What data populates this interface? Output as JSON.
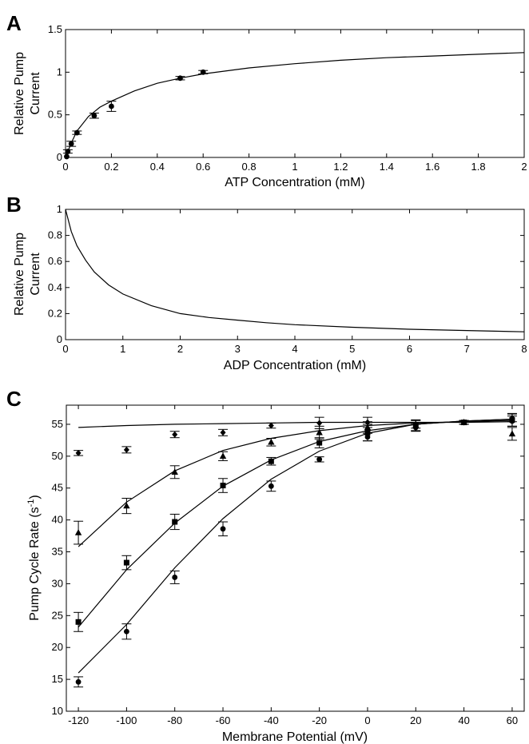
{
  "chart_data": [
    {
      "panel": "A",
      "type": "scatter",
      "xlabel": "ATP Concentration (mM)",
      "ylabel": [
        "Relative Pump",
        "Current"
      ],
      "xlim": [
        0,
        2
      ],
      "ylim": [
        0,
        1.5
      ],
      "xticks": [
        0,
        0.2,
        0.4,
        0.6,
        0.8,
        1,
        1.2,
        1.4,
        1.6,
        1.8,
        2
      ],
      "xtick_labels": [
        "0",
        "0.2",
        "0.4",
        "0.6",
        "0.8",
        "1",
        "1.2",
        "1.4",
        "1.6",
        "1.8",
        "2"
      ],
      "yticks": [
        0,
        0.5,
        1,
        1.5
      ],
      "ytick_labels": [
        "0",
        "0.5",
        "1",
        "1.5"
      ],
      "points": [
        {
          "x": 0.005,
          "y": 0.01,
          "err": 0
        },
        {
          "x": 0.01,
          "y": 0.07,
          "err": 0.02
        },
        {
          "x": 0.025,
          "y": 0.16,
          "err": 0.03
        },
        {
          "x": 0.05,
          "y": 0.29,
          "err": 0.02
        },
        {
          "x": 0.125,
          "y": 0.49,
          "err": 0.03
        },
        {
          "x": 0.2,
          "y": 0.6,
          "err": 0.06
        },
        {
          "x": 0.5,
          "y": 0.93,
          "err": 0.02
        },
        {
          "x": 0.6,
          "y": 1.0,
          "err": 0.02
        }
      ],
      "curve": {
        "x": [
          0,
          0.025,
          0.05,
          0.1,
          0.15,
          0.2,
          0.3,
          0.4,
          0.5,
          0.6,
          0.8,
          1.0,
          1.2,
          1.4,
          1.6,
          1.8,
          2.0
        ],
        "y": [
          0,
          0.17,
          0.31,
          0.48,
          0.59,
          0.66,
          0.78,
          0.87,
          0.93,
          0.98,
          1.05,
          1.1,
          1.14,
          1.17,
          1.19,
          1.21,
          1.23
        ]
      },
      "grid": false
    },
    {
      "panel": "B",
      "type": "line",
      "xlabel": "ADP Concentration (mM)",
      "ylabel": [
        "Relative Pump",
        "Current"
      ],
      "xlim": [
        0,
        8
      ],
      "ylim": [
        0,
        1
      ],
      "xticks": [
        0,
        1,
        2,
        3,
        4,
        5,
        6,
        7,
        8
      ],
      "xtick_labels": [
        "0",
        "1",
        "2",
        "3",
        "4",
        "5",
        "6",
        "7",
        "8"
      ],
      "yticks": [
        0,
        0.2,
        0.4,
        0.6,
        0.8,
        1
      ],
      "ytick_labels": [
        "0",
        "0.2",
        "0.4",
        "0.6",
        "0.8",
        "1"
      ],
      "curve": {
        "x": [
          0,
          0.1,
          0.2,
          0.35,
          0.5,
          0.75,
          1,
          1.5,
          2,
          2.5,
          3,
          3.5,
          4,
          5,
          6,
          7,
          8
        ],
        "y": [
          1.0,
          0.83,
          0.72,
          0.61,
          0.52,
          0.42,
          0.35,
          0.26,
          0.2,
          0.17,
          0.15,
          0.13,
          0.115,
          0.095,
          0.08,
          0.07,
          0.06
        ]
      },
      "grid": false
    },
    {
      "panel": "C",
      "type": "scatter",
      "xlabel": "Membrane Potential (mV)",
      "ylabel": "Pump Cycle Rate (s",
      "ylabel_sup": "-1",
      "ylabel_end": ")",
      "xlim": [
        -125,
        65
      ],
      "ylim": [
        10,
        58
      ],
      "xticks": [
        -120,
        -100,
        -80,
        -60,
        -40,
        -20,
        0,
        20,
        40,
        60
      ],
      "xtick_labels": [
        "-120",
        "-100",
        "-80",
        "-60",
        "-40",
        "-20",
        "0",
        "20",
        "40",
        "60"
      ],
      "yticks": [
        10,
        15,
        20,
        25,
        30,
        35,
        40,
        45,
        50,
        55
      ],
      "ytick_labels": [
        "10",
        "15",
        "20",
        "25",
        "30",
        "35",
        "40",
        "45",
        "50",
        "55"
      ],
      "series": [
        {
          "marker": "diamond",
          "points": [
            {
              "x": -120,
              "y": 50.5,
              "err": 0.4
            },
            {
              "x": -100,
              "y": 51.0,
              "err": 0.5
            },
            {
              "x": -80,
              "y": 53.4,
              "err": 0.5
            },
            {
              "x": -60,
              "y": 53.7,
              "err": 0.5
            },
            {
              "x": -40,
              "y": 54.8,
              "err": 0.4
            },
            {
              "x": -20,
              "y": 55.2,
              "err": 0.9
            },
            {
              "x": 0,
              "y": 55.3,
              "err": 0.8
            },
            {
              "x": 20,
              "y": 55.0,
              "err": 0.6
            },
            {
              "x": 40,
              "y": 55.3,
              "err": 0.3
            },
            {
              "x": 60,
              "y": 56.0,
              "err": 0.6
            }
          ],
          "curve": {
            "x": [
              -120,
              -100,
              -80,
              -60,
              -40,
              -20,
              0,
              20,
              40,
              60
            ],
            "y": [
              54.5,
              54.8,
              55.0,
              55.1,
              55.2,
              55.3,
              55.3,
              55.3,
              55.3,
              55.4
            ]
          }
        },
        {
          "marker": "triangle",
          "points": [
            {
              "x": -120,
              "y": 38.0,
              "err": 1.8
            },
            {
              "x": -100,
              "y": 42.2,
              "err": 1.2
            },
            {
              "x": -80,
              "y": 47.5,
              "err": 1.0
            },
            {
              "x": -60,
              "y": 50.0,
              "err": 0.7
            },
            {
              "x": -40,
              "y": 52.2,
              "err": 0.6
            },
            {
              "x": -20,
              "y": 53.7,
              "err": 1.0
            },
            {
              "x": 0,
              "y": 54.5,
              "err": 0.9
            },
            {
              "x": 20,
              "y": 54.8,
              "err": 0.8
            },
            {
              "x": 40,
              "y": 55.3,
              "err": 0.3
            },
            {
              "x": 60,
              "y": 53.5,
              "err": 1.0
            }
          ],
          "curve": {
            "x": [
              -120,
              -100,
              -80,
              -60,
              -40,
              -20,
              0,
              20,
              40,
              60
            ],
            "y": [
              35.8,
              42.8,
              47.7,
              50.9,
              52.8,
              54.0,
              54.8,
              55.2,
              55.4,
              55.6
            ]
          }
        },
        {
          "marker": "square",
          "points": [
            {
              "x": -120,
              "y": 24.0,
              "err": 1.5
            },
            {
              "x": -100,
              "y": 33.3,
              "err": 1.1
            },
            {
              "x": -80,
              "y": 39.7,
              "err": 1.2
            },
            {
              "x": -60,
              "y": 45.4,
              "err": 1.1
            },
            {
              "x": -40,
              "y": 49.2,
              "err": 0.6
            },
            {
              "x": -20,
              "y": 52.1,
              "err": 0.8
            },
            {
              "x": 0,
              "y": 53.7,
              "err": 1.3
            },
            {
              "x": 20,
              "y": 54.8,
              "err": 0.9
            },
            {
              "x": 40,
              "y": 55.3,
              "err": 0.3
            },
            {
              "x": 60,
              "y": 55.7,
              "err": 1.0
            }
          ],
          "curve": {
            "x": [
              -120,
              -100,
              -80,
              -60,
              -40,
              -20,
              0,
              20,
              40,
              60
            ],
            "y": [
              23.2,
              32.2,
              39.5,
              45.3,
              49.4,
              52.3,
              54.0,
              55.0,
              55.5,
              55.8
            ]
          }
        },
        {
          "marker": "circle",
          "points": [
            {
              "x": -120,
              "y": 14.6,
              "err": 0.8
            },
            {
              "x": -100,
              "y": 22.5,
              "err": 1.2
            },
            {
              "x": -80,
              "y": 31.0,
              "err": 1.0
            },
            {
              "x": -60,
              "y": 38.6,
              "err": 1.1
            },
            {
              "x": -40,
              "y": 45.3,
              "err": 0.8
            },
            {
              "x": -20,
              "y": 49.5,
              "err": 0.4
            },
            {
              "x": 0,
              "y": 53.0,
              "err": 0.6
            },
            {
              "x": 20,
              "y": 54.5,
              "err": 0.5
            },
            {
              "x": 40,
              "y": 55.3,
              "err": 0.3
            },
            {
              "x": 60,
              "y": 55.5,
              "err": 0.8
            }
          ],
          "curve": {
            "x": [
              -120,
              -100,
              -80,
              -60,
              -40,
              -20,
              0,
              20,
              40,
              60
            ],
            "y": [
              16.0,
              23.6,
              32.5,
              40.2,
              46.4,
              50.8,
              53.6,
              55.0,
              55.5,
              55.8
            ]
          }
        }
      ],
      "grid": false
    }
  ]
}
